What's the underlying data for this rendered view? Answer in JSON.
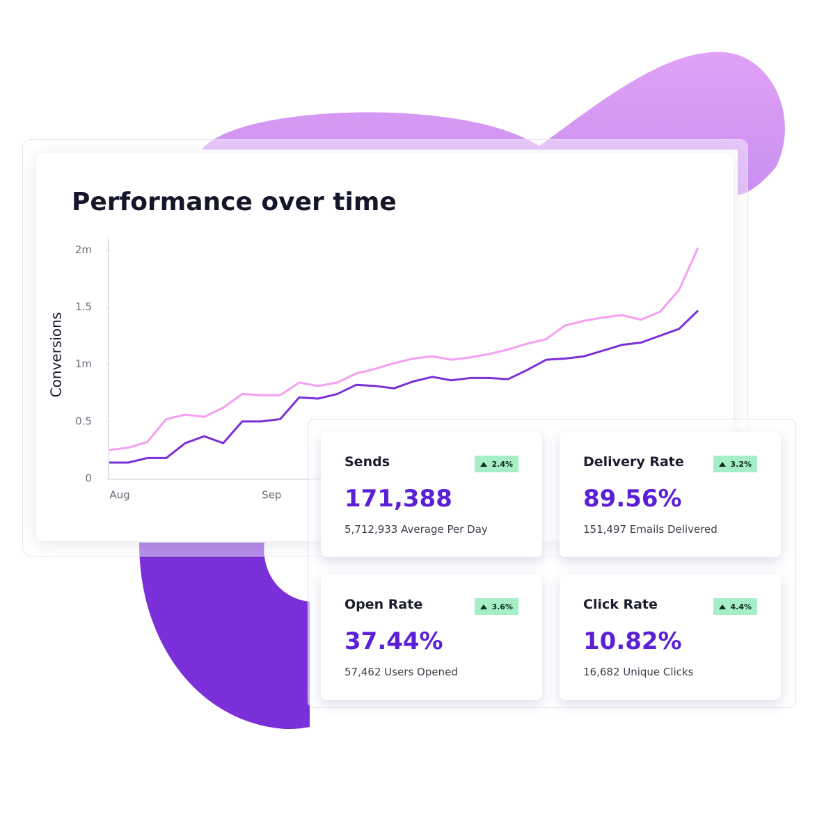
{
  "chart_data": {
    "type": "line",
    "title": "Performance over time",
    "y_label": "Conversions",
    "categories": [
      "Aug",
      null,
      null,
      null,
      null,
      null,
      null,
      null,
      "Sep",
      null,
      null,
      null,
      null,
      null,
      null,
      null,
      null,
      null,
      null,
      null,
      null,
      null,
      null,
      null,
      null,
      null,
      null,
      null,
      null,
      null,
      null,
      null
    ],
    "series": [
      {
        "color": "#f59ef2",
        "values": [
          0.25,
          0.27,
          0.32,
          0.52,
          0.56,
          0.54,
          0.62,
          0.74,
          0.73,
          0.73,
          0.84,
          0.81,
          0.84,
          0.92,
          0.96,
          1.01,
          1.05,
          1.07,
          1.04,
          1.06,
          1.09,
          1.13,
          1.18,
          1.22,
          1.34,
          1.38,
          1.41,
          1.43,
          1.39,
          1.46,
          1.65,
          2.02
        ]
      },
      {
        "color": "#7b2fd6",
        "values": [
          0.14,
          0.14,
          0.18,
          0.18,
          0.31,
          0.37,
          0.31,
          0.5,
          0.5,
          0.52,
          0.71,
          0.7,
          0.74,
          0.82,
          0.81,
          0.79,
          0.85,
          0.89,
          0.86,
          0.88,
          0.88,
          0.87,
          0.95,
          1.04,
          1.05,
          1.07,
          1.12,
          1.17,
          1.19,
          1.25,
          1.31,
          1.47
        ]
      }
    ],
    "ylim": [
      0,
      2.1
    ],
    "yticks": [
      0,
      0.5,
      {
        "value": 1,
        "label": "1m"
      },
      1.5,
      {
        "value": 2,
        "label": "2m"
      }
    ],
    "grid": false
  },
  "cards": [
    {
      "title": "Sends",
      "badge": "2.4%",
      "value": "171,388",
      "subtitle": "5,712,933 Average Per Day"
    },
    {
      "title": "Delivery Rate",
      "badge": "3.2%",
      "value": "89.56%",
      "subtitle": "151,497 Emails Delivered"
    },
    {
      "title": "Open Rate",
      "badge": "3.6%",
      "value": "37.44%",
      "subtitle": "57,462 Users Opened"
    },
    {
      "title": "Click Rate",
      "badge": "4.4%",
      "value": "10.82%",
      "subtitle": "16,682 Unique Clicks"
    }
  ]
}
